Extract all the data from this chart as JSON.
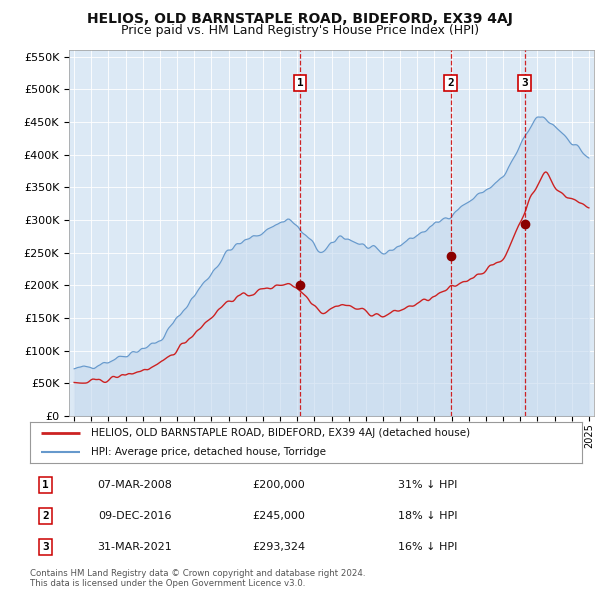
{
  "title": "HELIOS, OLD BARNSTAPLE ROAD, BIDEFORD, EX39 4AJ",
  "subtitle": "Price paid vs. HM Land Registry's House Price Index (HPI)",
  "bg_color": "#dce9f5",
  "ylim": [
    0,
    560000
  ],
  "yticks": [
    0,
    50000,
    100000,
    150000,
    200000,
    250000,
    300000,
    350000,
    400000,
    450000,
    500000,
    550000
  ],
  "ytick_labels": [
    "£0",
    "£50K",
    "£100K",
    "£150K",
    "£200K",
    "£250K",
    "£300K",
    "£350K",
    "£400K",
    "£450K",
    "£500K",
    "£550K"
  ],
  "sale_prices": [
    200000,
    245000,
    293324
  ],
  "vline_x": [
    2008.18,
    2016.94,
    2021.25
  ],
  "legend_line1": "HELIOS, OLD BARNSTAPLE ROAD, BIDEFORD, EX39 4AJ (detached house)",
  "legend_line2": "HPI: Average price, detached house, Torridge",
  "table_data": [
    [
      "1",
      "07-MAR-2008",
      "£200,000",
      "31% ↓ HPI"
    ],
    [
      "2",
      "09-DEC-2016",
      "£245,000",
      "18% ↓ HPI"
    ],
    [
      "3",
      "31-MAR-2021",
      "£293,324",
      "16% ↓ HPI"
    ]
  ],
  "footnote": "Contains HM Land Registry data © Crown copyright and database right 2024.\nThis data is licensed under the Open Government Licence v3.0.",
  "hpi_line_color": "#6699cc",
  "hpi_fill_color": "#c5d9ee",
  "price_line_color": "#cc2222",
  "dot_color": "#8b0000",
  "grid_color": "#ffffff",
  "box_edge_color": "#cc0000"
}
